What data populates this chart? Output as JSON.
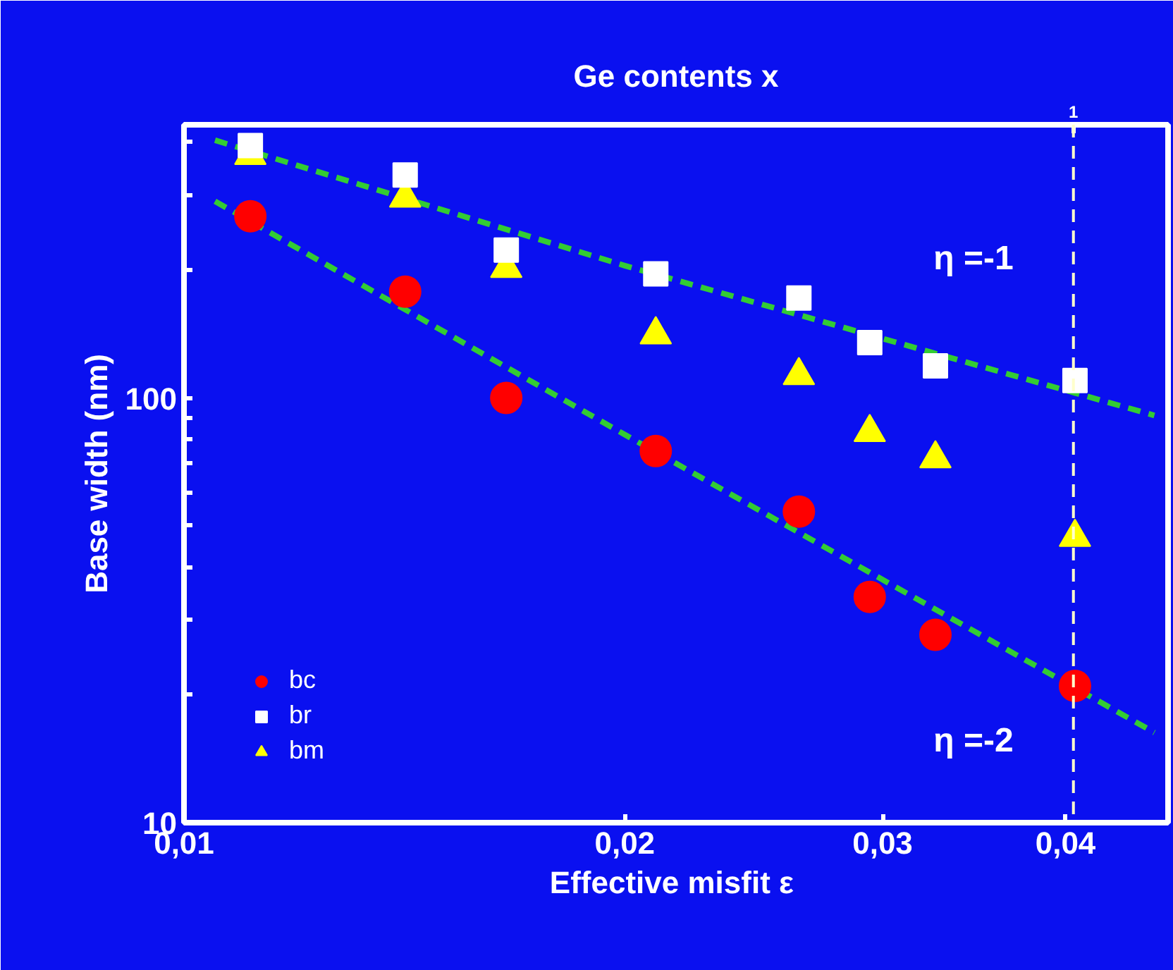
{
  "chart_data": {
    "type": "scatter",
    "xlabel": "Effective misfit  ε",
    "ylabel": "Base width (nm)",
    "x2label": "Ge contents x",
    "x": [
      0.0111,
      0.01416,
      0.0166,
      0.021,
      0.0263,
      0.0294,
      0.0326,
      0.0406
    ],
    "series": [
      {
        "name": "bc",
        "color": "#ff0000",
        "marker": "circle",
        "values": [
          268,
          178,
          100,
          75,
          54,
          34,
          27.7,
          21
        ]
      },
      {
        "name": "br",
        "color": "#ffffff",
        "marker": "square",
        "values": [
          393,
          335,
          223,
          196,
          172,
          135,
          119,
          110
        ]
      },
      {
        "name": "bm",
        "color": "#ffff00",
        "marker": "triangle",
        "values": [
          373,
          296,
          202,
          141,
          113,
          83,
          72,
          47
        ]
      },
      {
        "type": "line",
        "color": "#33cc33",
        "line_style": "dashed",
        "marker": "none",
        "x": [
          0.0105,
          0.02,
          0.046
        ],
        "values": [
          404.6,
          205,
          91
        ]
      },
      {
        "type": "line",
        "color": "#33cc33",
        "line_style": "dashed",
        "marker": "none",
        "x": [
          0.0105,
          0.02,
          0.046
        ],
        "values": [
          290.6,
          82,
          16.3
        ]
      }
    ],
    "xlim": [
      0.01,
      0.047
    ],
    "ylim": [
      10,
      440
    ],
    "xticks": [
      {
        "value": 0.01,
        "label": "0,01"
      },
      {
        "value": 0.02,
        "label": "0,02"
      },
      {
        "value": 0.03,
        "label": "0,03"
      },
      {
        "value": 0.04,
        "label": "0,04"
      }
    ],
    "yticks": [
      10,
      {
        "value": 20,
        "label": null
      },
      {
        "value": 30,
        "label": null
      },
      {
        "value": 40,
        "label": null
      },
      {
        "value": 50,
        "label": null
      },
      {
        "value": 60,
        "label": null
      },
      {
        "value": 70,
        "label": null
      },
      {
        "value": 80,
        "label": null
      },
      {
        "value": 90,
        "label": null
      },
      100,
      {
        "value": 200,
        "label": null
      },
      {
        "value": 300,
        "label": null
      },
      {
        "value": 400,
        "label": null
      }
    ],
    "log": "xy",
    "grid": false,
    "legend": "bottom left",
    "ref_lines": [
      {
        "axis": "x",
        "value": 0.0405,
        "label": null,
        "color": "#ffffcc",
        "line_style": "dashed"
      }
    ],
    "annotations": [
      "η =-1",
      "η =-2",
      "1"
    ]
  }
}
